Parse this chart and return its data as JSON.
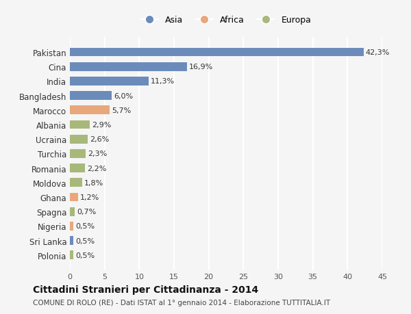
{
  "categories": [
    "Pakistan",
    "Cina",
    "India",
    "Bangladesh",
    "Marocco",
    "Albania",
    "Ucraina",
    "Turchia",
    "Romania",
    "Moldova",
    "Ghana",
    "Spagna",
    "Nigeria",
    "Sri Lanka",
    "Polonia"
  ],
  "values": [
    42.3,
    16.9,
    11.3,
    6.0,
    5.7,
    2.9,
    2.6,
    2.3,
    2.2,
    1.8,
    1.2,
    0.7,
    0.5,
    0.5,
    0.5
  ],
  "labels": [
    "42,3%",
    "16,9%",
    "11,3%",
    "6,0%",
    "5,7%",
    "2,9%",
    "2,6%",
    "2,3%",
    "2,2%",
    "1,8%",
    "1,2%",
    "0,7%",
    "0,5%",
    "0,5%",
    "0,5%"
  ],
  "colors": [
    "#6b8cba",
    "#6b8cba",
    "#6b8cba",
    "#6b8cba",
    "#e8a87c",
    "#a8b87a",
    "#a8b87a",
    "#a8b87a",
    "#a8b87a",
    "#a8b87a",
    "#e8a87c",
    "#a8b87a",
    "#e8a87c",
    "#6b8cba",
    "#a8b87a"
  ],
  "legend_labels": [
    "Asia",
    "Africa",
    "Europa"
  ],
  "legend_colors": [
    "#6b8cba",
    "#e8a87c",
    "#a8b87a"
  ],
  "title": "Cittadini Stranieri per Cittadinanza - 2014",
  "subtitle": "COMUNE DI ROLO (RE) - Dati ISTAT al 1° gennaio 2014 - Elaborazione TUTTITALIA.IT",
  "xlim": [
    0,
    45
  ],
  "xticks": [
    0,
    5,
    10,
    15,
    20,
    25,
    30,
    35,
    40,
    45
  ],
  "background_color": "#f5f5f5",
  "grid_color": "#ffffff",
  "bar_height": 0.6
}
